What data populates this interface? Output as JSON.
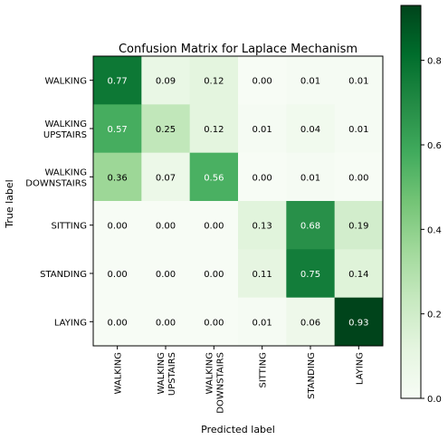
{
  "chart_data": {
    "type": "heatmap",
    "title": "Confusion Matrix for Laplace Mechanism",
    "xlabel": "Predicted label",
    "ylabel": "True label",
    "rows": [
      [
        "WALKING"
      ],
      [
        "WALKING",
        "UPSTAIRS"
      ],
      [
        "WALKING",
        "DOWNSTAIRS"
      ],
      [
        "SITTING"
      ],
      [
        "STANDING"
      ],
      [
        "LAYING"
      ]
    ],
    "columns": [
      [
        "WALKING"
      ],
      [
        "WALKING",
        "UPSTAIRS"
      ],
      [
        "WALKING",
        "DOWNSTAIRS"
      ],
      [
        "SITTING"
      ],
      [
        "STANDING"
      ],
      [
        "LAYING"
      ]
    ],
    "values": [
      [
        0.77,
        0.09,
        0.12,
        0.0,
        0.01,
        0.01
      ],
      [
        0.57,
        0.25,
        0.12,
        0.01,
        0.04,
        0.01
      ],
      [
        0.36,
        0.07,
        0.56,
        0.0,
        0.01,
        0.0
      ],
      [
        0.0,
        0.0,
        0.0,
        0.13,
        0.68,
        0.19
      ],
      [
        0.0,
        0.0,
        0.0,
        0.11,
        0.75,
        0.14
      ],
      [
        0.0,
        0.0,
        0.0,
        0.01,
        0.06,
        0.93
      ]
    ],
    "cell_labels": [
      [
        "0.77",
        "0.09",
        "0.12",
        "0.00",
        "0.01",
        "0.01"
      ],
      [
        "0.57",
        "0.25",
        "0.12",
        "0.01",
        "0.04",
        "0.01"
      ],
      [
        "0.36",
        "0.07",
        "0.56",
        "0.00",
        "0.01",
        "0.00"
      ],
      [
        "0.00",
        "0.00",
        "0.00",
        "0.13",
        "0.68",
        "0.19"
      ],
      [
        "0.00",
        "0.00",
        "0.00",
        "0.11",
        "0.75",
        "0.14"
      ],
      [
        "0.00",
        "0.00",
        "0.00",
        "0.01",
        "0.06",
        "0.93"
      ]
    ],
    "colorbar": {
      "range": [
        0,
        0.93
      ],
      "ticks": [
        0.0,
        0.2,
        0.4,
        0.6,
        0.8
      ],
      "tick_labels": [
        "0.0",
        "0.2",
        "0.4",
        "0.6",
        "0.8"
      ]
    },
    "colormap": "Greens",
    "grid": false
  }
}
